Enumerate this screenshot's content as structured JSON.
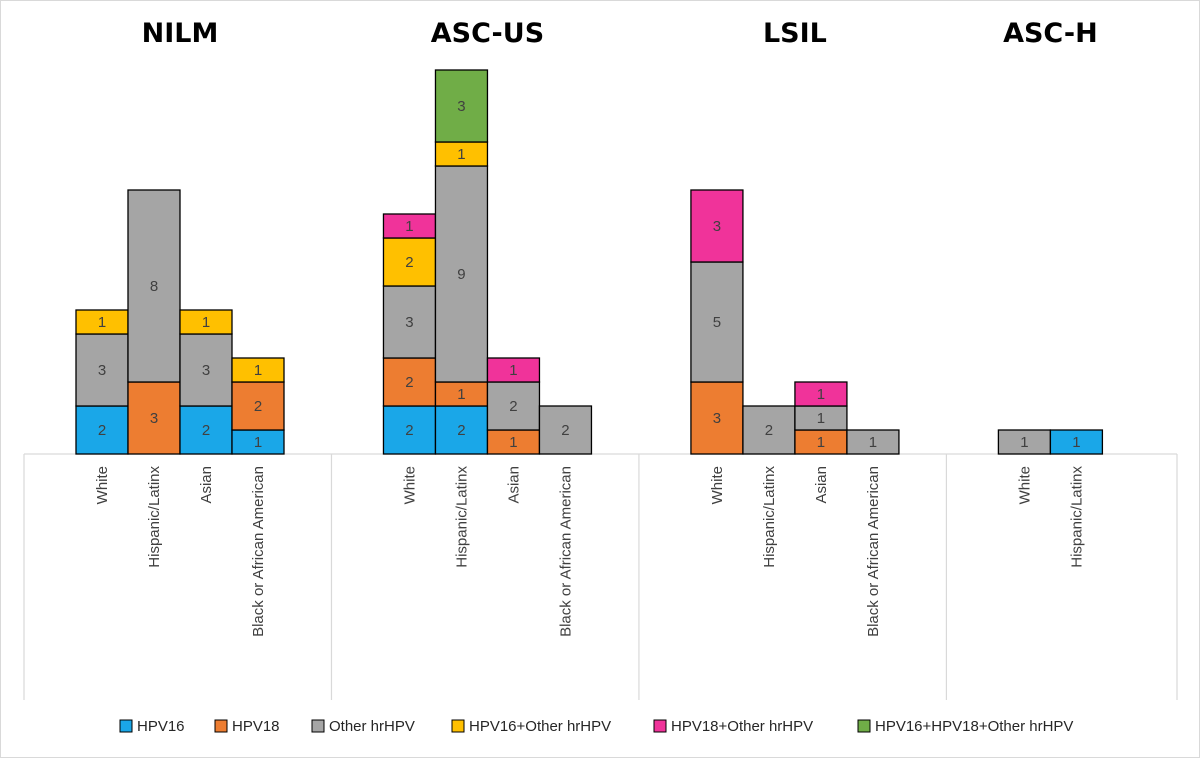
{
  "chart_data": {
    "type": "bar",
    "stacked": true,
    "title": "",
    "xlabel": "",
    "ylabel": "",
    "ylim": [
      0,
      16
    ],
    "grid": false,
    "legend_position": "bottom",
    "series": [
      {
        "name": "HPV16",
        "color": "#1aa7e8"
      },
      {
        "name": "HPV18",
        "color": "#ed7d31"
      },
      {
        "name": "Other hrHPV",
        "color": "#a5a5a5"
      },
      {
        "name": "HPV16+Other hrHPV",
        "color": "#ffc000"
      },
      {
        "name": "HPV18+Other hrHPV",
        "color": "#f0339a"
      },
      {
        "name": "HPV16+HPV18+Other hrHPV",
        "color": "#70ad47"
      }
    ],
    "groups": [
      {
        "title": "NILM",
        "categories": [
          "White",
          "Hispanic/Latinx",
          "Asian",
          "Black or African American"
        ],
        "values": [
          [
            2,
            0,
            3,
            1,
            0,
            0
          ],
          [
            0,
            3,
            8,
            0,
            0,
            0
          ],
          [
            2,
            0,
            3,
            1,
            0,
            0
          ],
          [
            1,
            2,
            0,
            1,
            0,
            0
          ]
        ]
      },
      {
        "title": "ASC-US",
        "categories": [
          "White",
          "Hispanic/Latinx",
          "Asian",
          "Black or African American"
        ],
        "values": [
          [
            2,
            2,
            3,
            2,
            1,
            0
          ],
          [
            2,
            1,
            9,
            1,
            0,
            3
          ],
          [
            0,
            1,
            2,
            0,
            1,
            0
          ],
          [
            0,
            0,
            2,
            0,
            0,
            0
          ]
        ]
      },
      {
        "title": "LSIL",
        "categories": [
          "White",
          "Hispanic/Latinx",
          "Asian",
          "Black or African American"
        ],
        "values": [
          [
            0,
            3,
            5,
            0,
            3,
            0
          ],
          [
            0,
            0,
            2,
            0,
            0,
            0
          ],
          [
            0,
            1,
            1,
            0,
            1,
            0
          ],
          [
            0,
            0,
            1,
            0,
            0,
            0
          ]
        ]
      },
      {
        "title": "ASC-H",
        "categories": [
          "White",
          "Hispanic/Latinx"
        ],
        "values": [
          [
            0,
            0,
            1,
            0,
            0,
            0
          ],
          [
            1,
            0,
            0,
            0,
            0,
            0
          ]
        ]
      }
    ]
  }
}
